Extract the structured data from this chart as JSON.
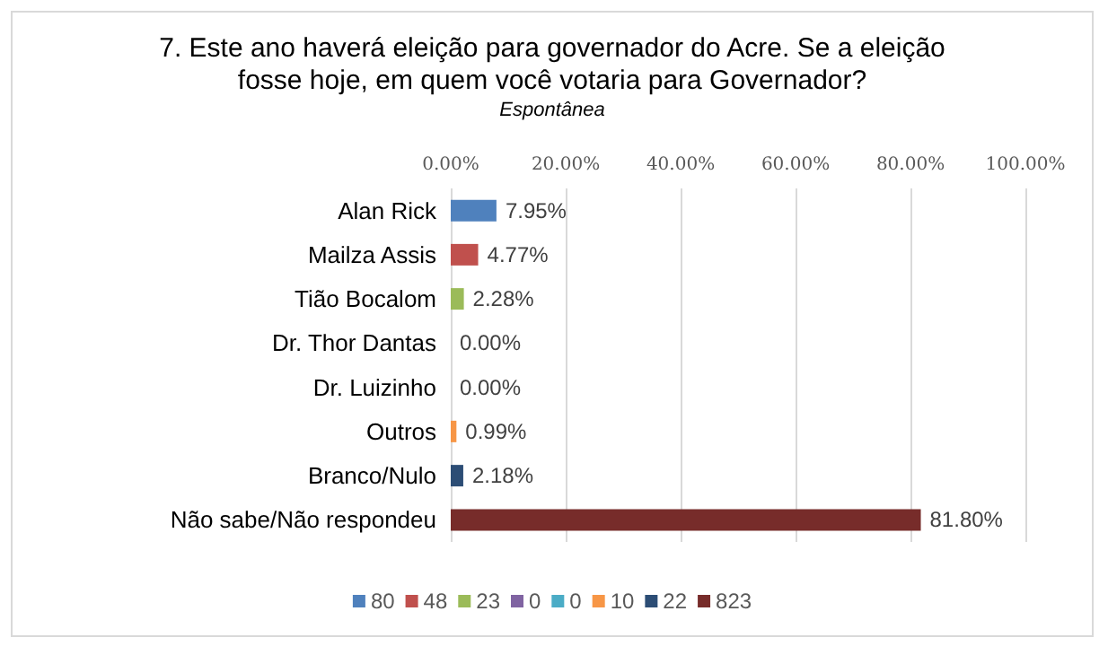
{
  "chart_data": {
    "type": "bar",
    "orientation": "horizontal",
    "stacked": true,
    "title": "7. Este ano haverá eleição para governador do Acre. Se a eleição\nfosse hoje, em quem você votaria para Governador?",
    "subtitle": "Espontânea",
    "categories": [
      "Alan Rick",
      "Mailza Assis",
      "Tião Bocalom",
      "Dr. Thor Dantas",
      "Dr. Luizinho",
      "Outros",
      "Branco/Nulo",
      "Não sabe/Não respondeu"
    ],
    "series": [
      {
        "name": "80",
        "color": "#4f81bd",
        "values": [
          7.95,
          null,
          null,
          null,
          null,
          null,
          null,
          null
        ],
        "value_labels": [
          "7.95%",
          null,
          null,
          null,
          null,
          null,
          null,
          null
        ]
      },
      {
        "name": "48",
        "color": "#c0504d",
        "values": [
          null,
          4.77,
          null,
          null,
          null,
          null,
          null,
          null
        ],
        "value_labels": [
          null,
          "4.77%",
          null,
          null,
          null,
          null,
          null,
          null
        ]
      },
      {
        "name": "23",
        "color": "#9bbb59",
        "values": [
          null,
          null,
          2.28,
          null,
          null,
          null,
          null,
          null
        ],
        "value_labels": [
          null,
          null,
          "2.28%",
          null,
          null,
          null,
          null,
          null
        ]
      },
      {
        "name": "0",
        "color": "#8064a2",
        "values": [
          null,
          null,
          null,
          0,
          null,
          null,
          null,
          null
        ],
        "value_labels": [
          null,
          null,
          null,
          "0.00%",
          null,
          null,
          null,
          null
        ]
      },
      {
        "name": "0",
        "color": "#4bacc6",
        "values": [
          null,
          null,
          null,
          null,
          0,
          null,
          null,
          null
        ],
        "value_labels": [
          null,
          null,
          null,
          null,
          "0.00%",
          null,
          null,
          null
        ]
      },
      {
        "name": "10",
        "color": "#f79646",
        "values": [
          null,
          null,
          null,
          null,
          null,
          0.99,
          null,
          null
        ],
        "value_labels": [
          null,
          null,
          null,
          null,
          null,
          "0.99%",
          null,
          null
        ]
      },
      {
        "name": "22",
        "color": "#2c4d75",
        "values": [
          null,
          null,
          null,
          null,
          null,
          null,
          2.18,
          null
        ],
        "value_labels": [
          null,
          null,
          null,
          null,
          null,
          null,
          "2.18%",
          null
        ]
      },
      {
        "name": "823",
        "color": "#772c2a",
        "values": [
          null,
          null,
          null,
          null,
          null,
          null,
          null,
          81.8
        ],
        "value_labels": [
          null,
          null,
          null,
          null,
          null,
          null,
          null,
          "81.80%"
        ]
      }
    ],
    "xlim": [
      0,
      100
    ],
    "xticks": [
      {
        "value": 0,
        "label": "0.00%"
      },
      {
        "value": 20,
        "label": "20.00%"
      },
      {
        "value": 40,
        "label": "40.00%"
      },
      {
        "value": 60,
        "label": "60.00%"
      },
      {
        "value": 80,
        "label": "80.00%"
      },
      {
        "value": 100,
        "label": "100.00%"
      }
    ],
    "grid": "x",
    "legend": "bottom"
  }
}
